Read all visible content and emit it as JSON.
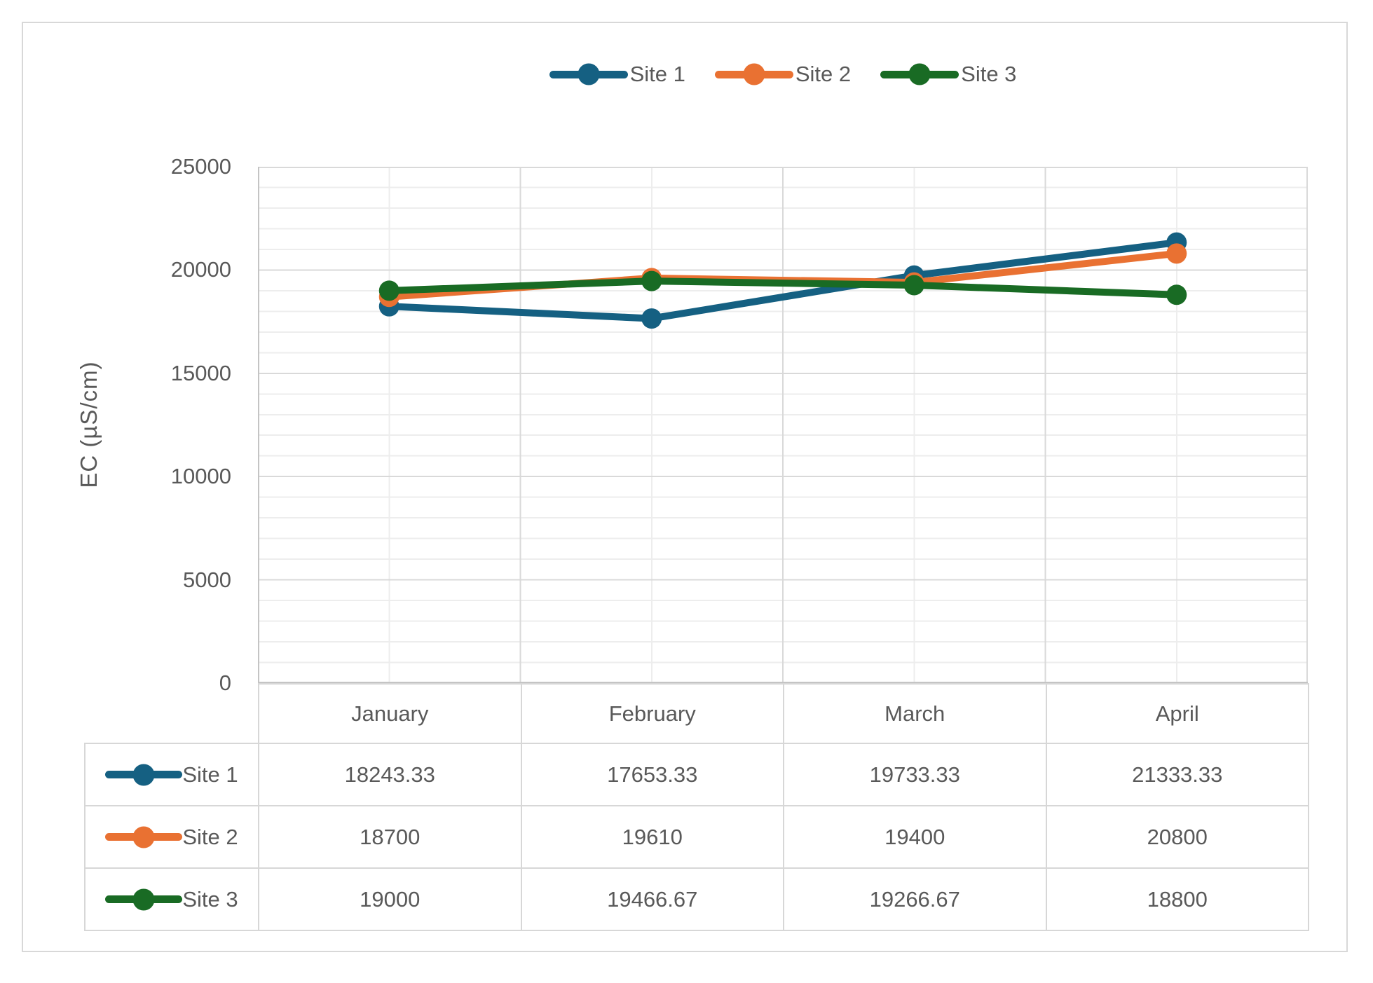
{
  "figure": {
    "background": "#FFFFFF",
    "border_color": "#D8D8D8",
    "text_color": "#595959"
  },
  "chart_data": {
    "type": "line",
    "title": "",
    "xlabel": "",
    "ylabel": "EC (µS/cm)",
    "categories": [
      "January",
      "February",
      "March",
      "April"
    ],
    "series": [
      {
        "name": "Site 1",
        "color": "#156082",
        "values": [
          18243.33,
          17653.33,
          19733.33,
          21333.33
        ],
        "display_values": [
          "18243.33",
          "17653.33",
          "19733.33",
          "21333.33"
        ]
      },
      {
        "name": "Site 2",
        "color": "#E97132",
        "values": [
          18700,
          19610,
          19400,
          20800
        ],
        "display_values": [
          "18700",
          "19610",
          "19400",
          "20800"
        ]
      },
      {
        "name": "Site 3",
        "color": "#196B24",
        "values": [
          19000,
          19466.67,
          19266.67,
          18800
        ],
        "display_values": [
          "19000",
          "19466.67",
          "19266.67",
          "18800"
        ]
      }
    ],
    "ylim": [
      0,
      25000
    ],
    "y_major_unit": 5000,
    "y_minor_unit": 1000,
    "y_tick_labels": [
      "25000",
      "20000",
      "15000",
      "10000",
      "5000",
      "0"
    ],
    "legend_position": "top",
    "marker": "circle",
    "data_table_shown": true,
    "grid": {
      "major_color": "#D9D9D9",
      "minor_color": "#EDEDED",
      "axis_color": "#C4C4C4",
      "table_border_color": "#D7D7D7",
      "horizontal_minor": true,
      "vertical_minor": true
    }
  }
}
